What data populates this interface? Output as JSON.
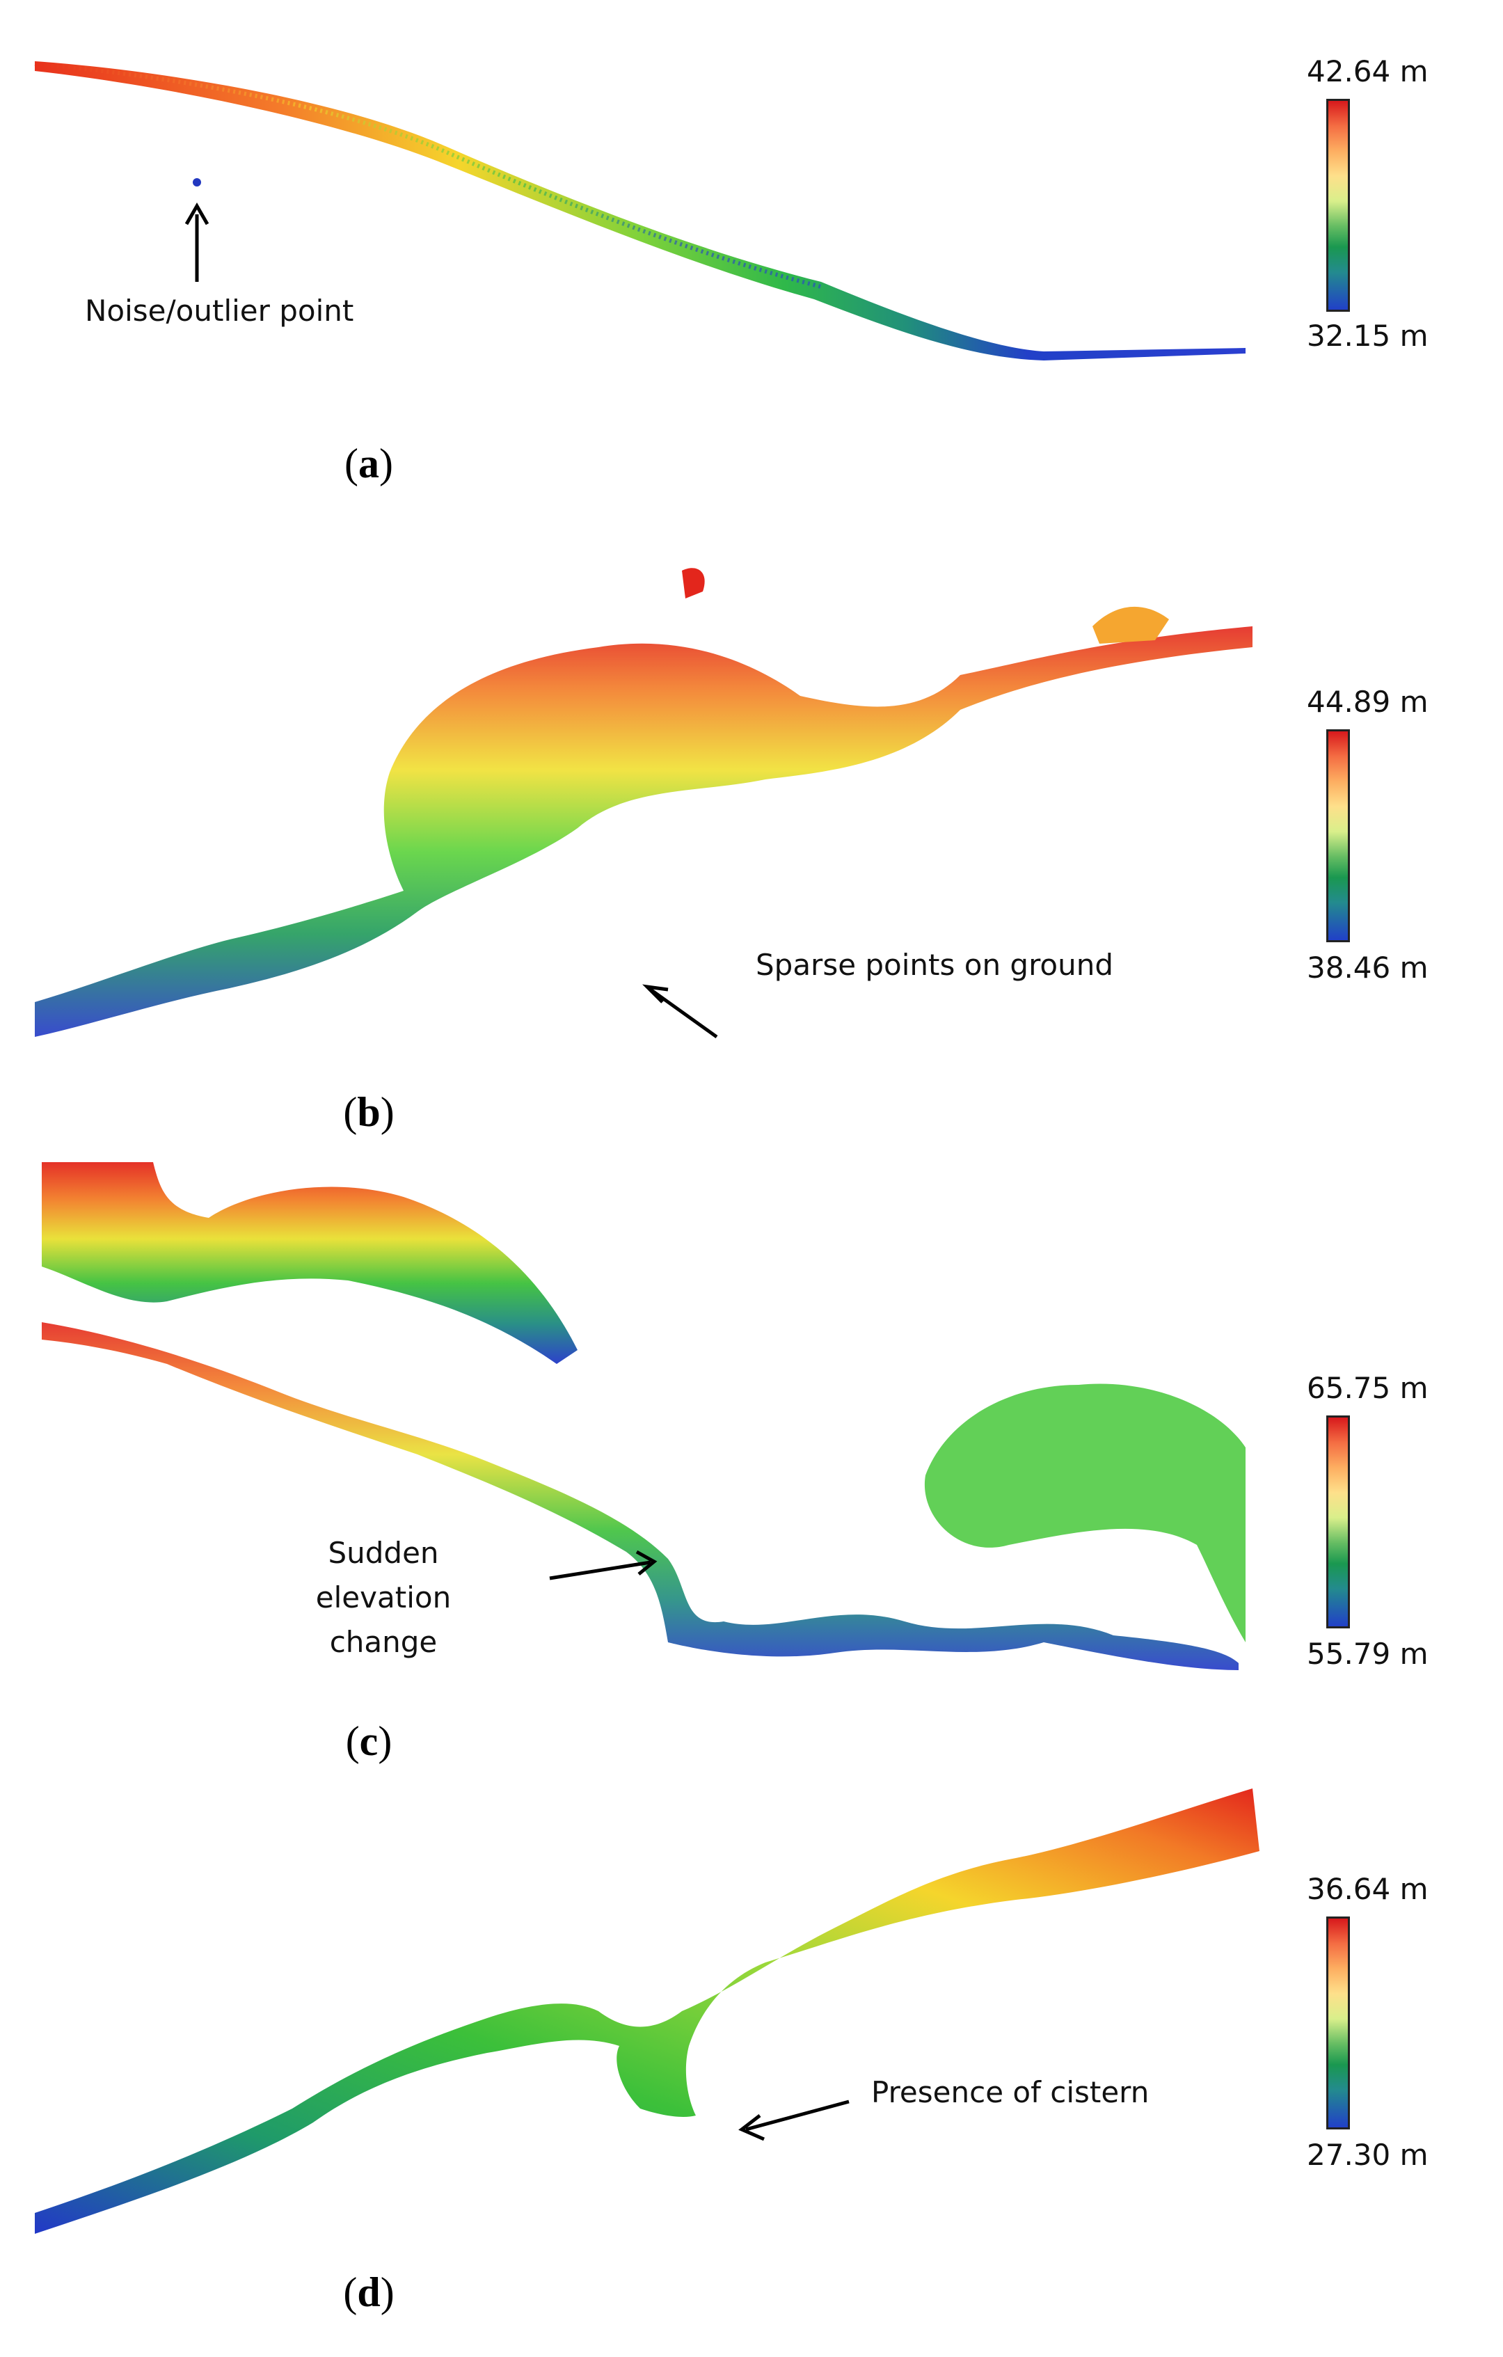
{
  "panels": [
    {
      "id": "a",
      "caption": "a",
      "scale_max": "42.64 m",
      "scale_min": "32.15 m",
      "annotation": "Noise/outlier point"
    },
    {
      "id": "b",
      "caption": "b",
      "scale_max": "44.89 m",
      "scale_min": "38.46 m",
      "annotation": "Sparse points on ground"
    },
    {
      "id": "c",
      "caption": "c",
      "scale_max": "65.75 m",
      "scale_min": "55.79 m",
      "annotation": "Sudden elevation change"
    },
    {
      "id": "d",
      "caption": "d",
      "scale_max": "36.64 m",
      "scale_min": "27.30 m",
      "annotation": "Presence of cistern"
    }
  ]
}
